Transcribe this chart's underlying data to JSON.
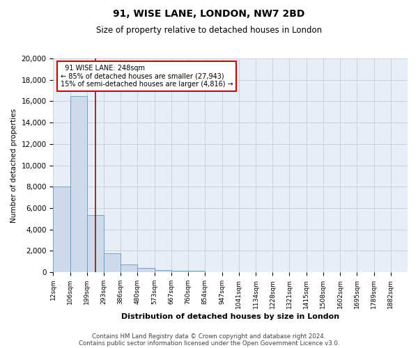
{
  "title1": "91, WISE LANE, LONDON, NW7 2BD",
  "title2": "Size of property relative to detached houses in London",
  "xlabel": "Distribution of detached houses by size in London",
  "ylabel": "Number of detached properties",
  "bin_labels": [
    "12sqm",
    "106sqm",
    "199sqm",
    "293sqm",
    "386sqm",
    "480sqm",
    "573sqm",
    "667sqm",
    "760sqm",
    "854sqm",
    "947sqm",
    "1041sqm",
    "1134sqm",
    "1228sqm",
    "1321sqm",
    "1415sqm",
    "1508sqm",
    "1602sqm",
    "1695sqm",
    "1789sqm",
    "1882sqm"
  ],
  "bar_values": [
    8050,
    16500,
    5350,
    1750,
    700,
    380,
    220,
    170,
    130,
    0,
    0,
    0,
    0,
    0,
    0,
    0,
    0,
    0,
    0,
    0,
    0
  ],
  "bar_color": "#cddaeb",
  "bar_edge_color": "#6699bb",
  "vline_color": "#aa0000",
  "vline_position": 2.52,
  "annotation_text": "  91 WISE LANE: 248sqm  \n← 85% of detached houses are smaller (27,943)\n15% of semi-detached houses are larger (4,816) →",
  "annotation_box_facecolor": "white",
  "annotation_box_edgecolor": "#cc0000",
  "ylim": [
    0,
    20000
  ],
  "yticks": [
    0,
    2000,
    4000,
    6000,
    8000,
    10000,
    12000,
    14000,
    16000,
    18000,
    20000
  ],
  "grid_color": "#cccccc",
  "bg_color": "#e8eef7",
  "footer_line1": "Contains HM Land Registry data © Crown copyright and database right 2024.",
  "footer_line2": "Contains public sector information licensed under the Open Government Licence v3.0."
}
